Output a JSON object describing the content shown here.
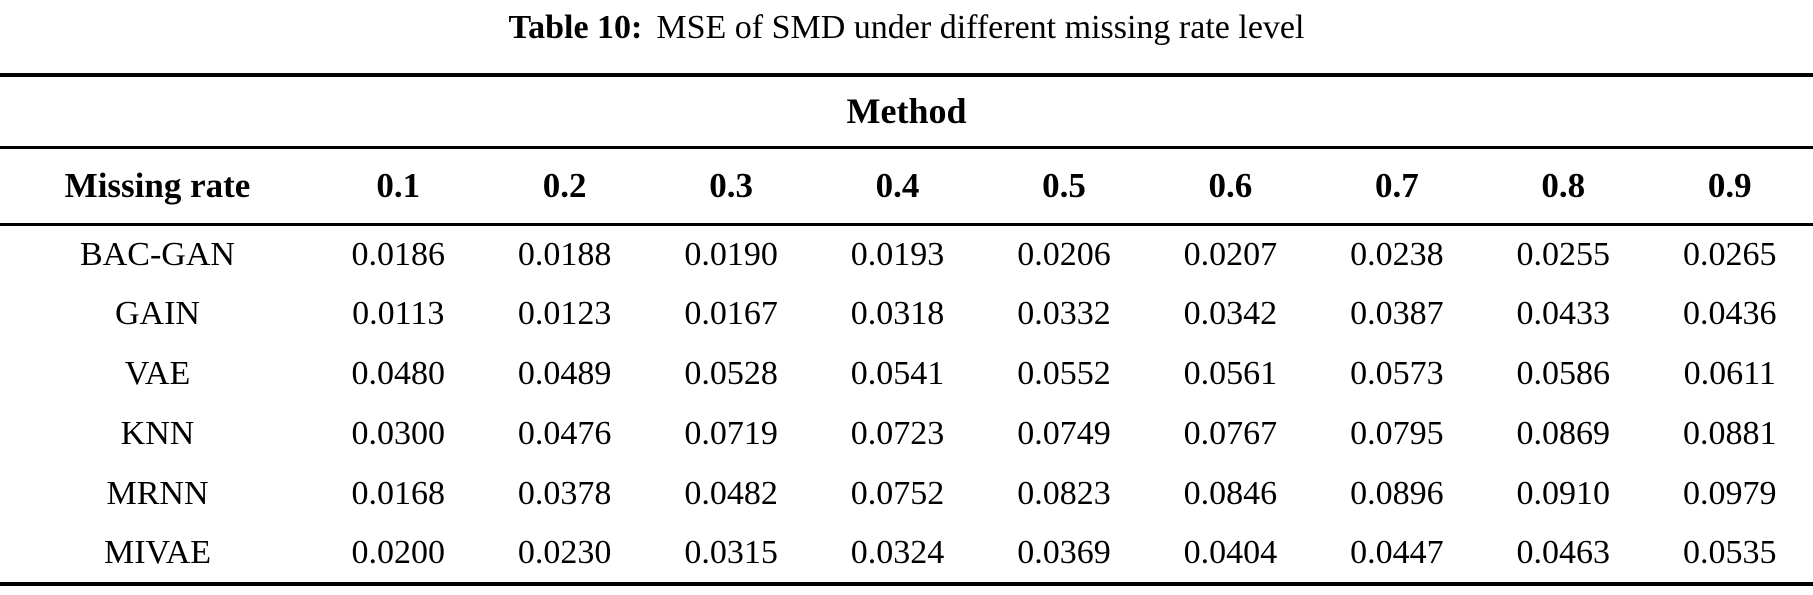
{
  "caption": {
    "label": "Table 10:",
    "text": "MSE of SMD under different missing rate level"
  },
  "table": {
    "group_header": "Method",
    "corner_header": "Missing rate",
    "columns": [
      "0.1",
      "0.2",
      "0.3",
      "0.4",
      "0.5",
      "0.6",
      "0.7",
      "0.8",
      "0.9"
    ],
    "rows": [
      {
        "method": "BAC-GAN",
        "values": [
          "0.0186",
          "0.0188",
          "0.0190",
          "0.0193",
          "0.0206",
          "0.0207",
          "0.0238",
          "0.0255",
          "0.0265"
        ]
      },
      {
        "method": "GAIN",
        "values": [
          "0.0113",
          "0.0123",
          "0.0167",
          "0.0318",
          "0.0332",
          "0.0342",
          "0.0387",
          "0.0433",
          "0.0436"
        ]
      },
      {
        "method": "VAE",
        "values": [
          "0.0480",
          "0.0489",
          "0.0528",
          "0.0541",
          "0.0552",
          "0.0561",
          "0.0573",
          "0.0586",
          "0.0611"
        ]
      },
      {
        "method": "KNN",
        "values": [
          "0.0300",
          "0.0476",
          "0.0719",
          "0.0723",
          "0.0749",
          "0.0767",
          "0.0795",
          "0.0869",
          "0.0881"
        ]
      },
      {
        "method": "MRNN",
        "values": [
          "0.0168",
          "0.0378",
          "0.0482",
          "0.0752",
          "0.0823",
          "0.0846",
          "0.0896",
          "0.0910",
          "0.0979"
        ]
      },
      {
        "method": "MIVAE",
        "values": [
          "0.0200",
          "0.0230",
          "0.0315",
          "0.0324",
          "0.0369",
          "0.0404",
          "0.0447",
          "0.0463",
          "0.0535"
        ]
      }
    ]
  }
}
